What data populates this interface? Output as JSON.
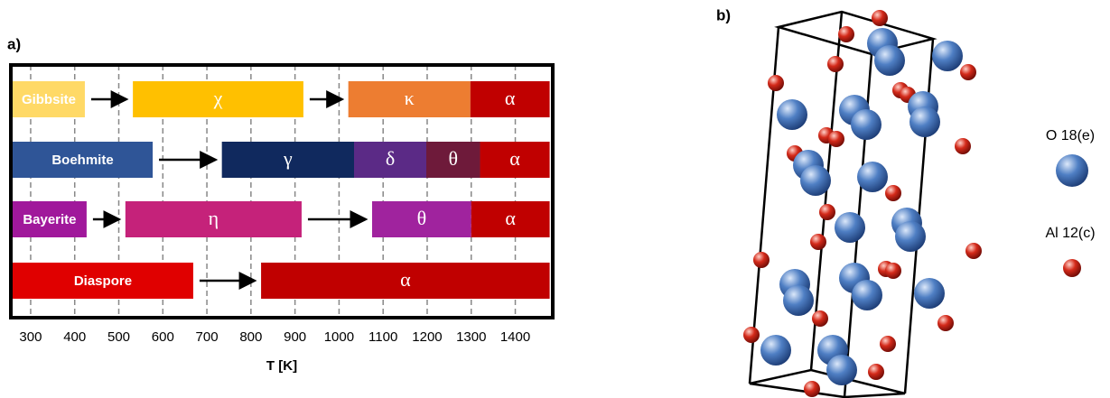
{
  "panel_a": {
    "label": "a)",
    "axis_label": "T [K]",
    "xlim": [
      255,
      1485
    ],
    "xticks": [
      300,
      400,
      500,
      600,
      700,
      800,
      900,
      1000,
      1100,
      1200,
      1300,
      1400
    ],
    "rows": [
      {
        "segments": [
          {
            "label": "Gibbsite",
            "start": 259,
            "end": 423,
            "color": "#ffd966"
          },
          {
            "label": "χ",
            "start": 532,
            "end": 919,
            "color": "#ffc000"
          },
          {
            "label": "κ",
            "start": 1021,
            "end": 1298,
            "color": "#ed7d31"
          },
          {
            "label": "α",
            "start": 1298,
            "end": 1478,
            "color": "#c00000"
          }
        ]
      },
      {
        "segments": [
          {
            "label": "Boehmite",
            "start": 259,
            "end": 577,
            "color": "#2f5597"
          },
          {
            "label": "γ",
            "start": 734,
            "end": 1034,
            "color": "#10295e"
          },
          {
            "label": "δ",
            "start": 1034,
            "end": 1198,
            "color": "#5b2a86"
          },
          {
            "label": "θ",
            "start": 1198,
            "end": 1320,
            "color": "#6e1a3a"
          },
          {
            "label": "α",
            "start": 1320,
            "end": 1478,
            "color": "#c00000"
          }
        ]
      },
      {
        "segments": [
          {
            "label": "Bayerite",
            "start": 259,
            "end": 427,
            "color": "#a0189b"
          },
          {
            "label": "η",
            "start": 515,
            "end": 915,
            "color": "#c5227a"
          },
          {
            "label": "θ",
            "start": 1075,
            "end": 1300,
            "color": "#a0239e"
          },
          {
            "label": "α",
            "start": 1300,
            "end": 1478,
            "color": "#c00000"
          }
        ]
      },
      {
        "segments": [
          {
            "label": "Diaspore",
            "start": 259,
            "end": 669,
            "color": "#e00000"
          },
          {
            "label": "α",
            "start": 823,
            "end": 1478,
            "color": "#c00000"
          }
        ]
      }
    ]
  },
  "panel_b": {
    "label": "b)",
    "legend": [
      "O 18(e)",
      "Al 12(c)"
    ]
  }
}
